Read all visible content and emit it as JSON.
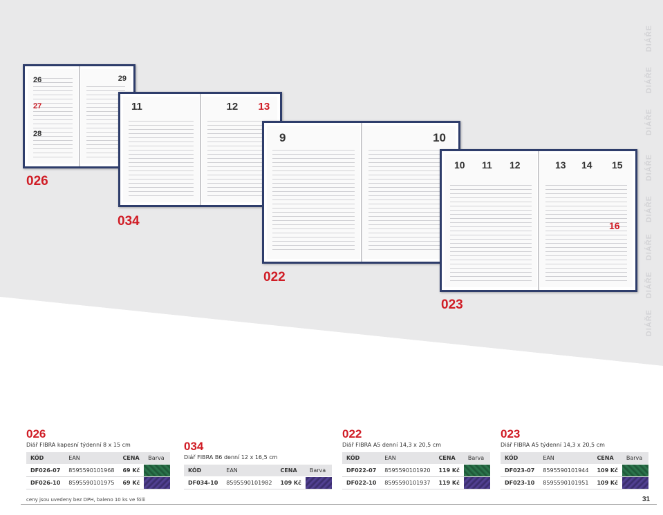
{
  "side_labels": [
    "DIÁŘE",
    "DIÁŘE",
    "DIÁŘE",
    "DIÁŘE",
    "DIÁŘE",
    "DIÁŘE",
    "DIÁŘE",
    "DIÁŘE"
  ],
  "image_labels": {
    "a": "026",
    "b": "034",
    "c": "022",
    "d": "023"
  },
  "planner_days": {
    "p026": [
      "26",
      "27",
      "28",
      "29"
    ],
    "p034": [
      "11",
      "12",
      "13"
    ],
    "p022": [
      "9",
      "10"
    ],
    "p023": [
      "10",
      "11",
      "12",
      "13",
      "14",
      "15",
      "16"
    ]
  },
  "products": [
    {
      "code": "026",
      "title": "Diář FIBRA kapesní týdenní 8 x 15 cm",
      "headers": [
        "KÓD",
        "EAN",
        "CENA",
        "Barva"
      ],
      "rows": [
        {
          "code": "DF026-07",
          "ean": "8595590101968",
          "price": "69 Kč",
          "color": "green"
        },
        {
          "code": "DF026-10",
          "ean": "8595590101975",
          "price": "69 Kč",
          "color": "purple"
        }
      ]
    },
    {
      "code": "034",
      "title": "Diář FIBRA B6 denní 12 x 16,5 cm",
      "headers": [
        "KÓD",
        "EAN",
        "CENA",
        "Barva"
      ],
      "rows": [
        {
          "code": "DF034-10",
          "ean": "8595590101982",
          "price": "109 Kč",
          "color": "purple"
        }
      ]
    },
    {
      "code": "022",
      "title": "Diář FIBRA A5 denní 14,3 x 20,5 cm",
      "headers": [
        "KÓD",
        "EAN",
        "CENA",
        "Barva"
      ],
      "rows": [
        {
          "code": "DF022-07",
          "ean": "8595590101920",
          "price": "119 Kč",
          "color": "green"
        },
        {
          "code": "DF022-10",
          "ean": "8595590101937",
          "price": "119 Kč",
          "color": "purple"
        }
      ]
    },
    {
      "code": "023",
      "title": "Diář FIBRA A5 týdenní 14,3 x 20,5 cm",
      "headers": [
        "KÓD",
        "EAN",
        "CENA",
        "Barva"
      ],
      "rows": [
        {
          "code": "DF023-07",
          "ean": "8595590101944",
          "price": "109 Kč",
          "color": "green"
        },
        {
          "code": "DF023-10",
          "ean": "8595590101951",
          "price": "109 Kč",
          "color": "purple"
        }
      ]
    }
  ],
  "footer_note": "ceny jsou uvedeny bez DPH, baleno 10 ks ve fólii",
  "page_number": "31",
  "colors": {
    "accent": "#d01c25",
    "frame": "#2e3d6b",
    "swatch_green": "#2e7a50",
    "swatch_purple": "#56449a"
  }
}
